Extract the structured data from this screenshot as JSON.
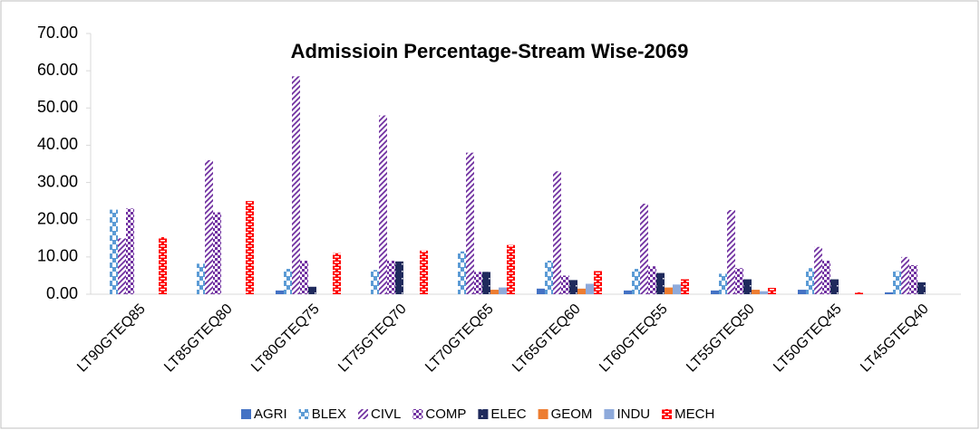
{
  "chart_data": {
    "type": "bar",
    "title": "Admissioin Percentage-Stream Wise-2069",
    "categories": [
      "LT90GTEQ85",
      "LT85GTEQ80",
      "LT80GTEQ75",
      "LT75GTEQ70",
      "LT70GTEQ65",
      "LT65GTEQ60",
      "LT60GTEQ55",
      "LT55GTEQ50",
      "LT50GTEQ45",
      "LT45GTEQ40"
    ],
    "series": [
      {
        "name": "AGRI",
        "color": "#4472c4",
        "pattern": "solid",
        "values": [
          0,
          0,
          1.0,
          0,
          0,
          1.5,
          1.0,
          1.0,
          1.2,
          0.5
        ]
      },
      {
        "name": "BLEX",
        "color": "#5b9bd5",
        "pattern": "dash",
        "values": [
          22.7,
          8.2,
          6.8,
          6.5,
          11.5,
          9.0,
          6.8,
          5.5,
          7.0,
          6.2
        ]
      },
      {
        "name": "CIVL",
        "color": "#7030a0",
        "pattern": "diagonal",
        "values": [
          15.0,
          36.0,
          58.5,
          48.0,
          38.0,
          33.0,
          24.3,
          22.6,
          12.7,
          10.0
        ]
      },
      {
        "name": "COMP",
        "color": "#7030a0",
        "pattern": "checker",
        "values": [
          23.0,
          22.0,
          9.0,
          9.0,
          6.0,
          5.0,
          7.5,
          7.0,
          9.0,
          7.8
        ]
      },
      {
        "name": "ELEC",
        "color": "#1f2a5c",
        "pattern": "dots",
        "values": [
          0,
          0,
          2.0,
          8.8,
          6.0,
          3.8,
          5.7,
          4.0,
          4.0,
          3.2
        ]
      },
      {
        "name": "GEOM",
        "color": "#ed7d31",
        "pattern": "solid",
        "values": [
          0,
          0,
          0,
          0,
          1.2,
          1.5,
          1.8,
          1.2,
          0,
          0
        ]
      },
      {
        "name": "INDU",
        "color": "#8eaadb",
        "pattern": "solid",
        "values": [
          0,
          0,
          0,
          0,
          1.8,
          2.8,
          2.6,
          0.8,
          0,
          0
        ]
      },
      {
        "name": "MECH",
        "color": "#ff0000",
        "pattern": "bricks",
        "values": [
          15.3,
          25.0,
          11.0,
          11.7,
          13.2,
          6.2,
          4.0,
          1.7,
          0.5,
          0
        ]
      }
    ],
    "ylim": [
      0,
      70
    ],
    "yticks": [
      {
        "value": 0,
        "label": "0.00"
      },
      {
        "value": 10,
        "label": "10.00"
      },
      {
        "value": 20,
        "label": "20.00"
      },
      {
        "value": 30,
        "label": "30.00"
      },
      {
        "value": 40,
        "label": "40.00"
      },
      {
        "value": 50,
        "label": "50.00"
      },
      {
        "value": 60,
        "label": "60.00"
      },
      {
        "value": 70,
        "label": "70.00"
      }
    ],
    "grid": false
  }
}
